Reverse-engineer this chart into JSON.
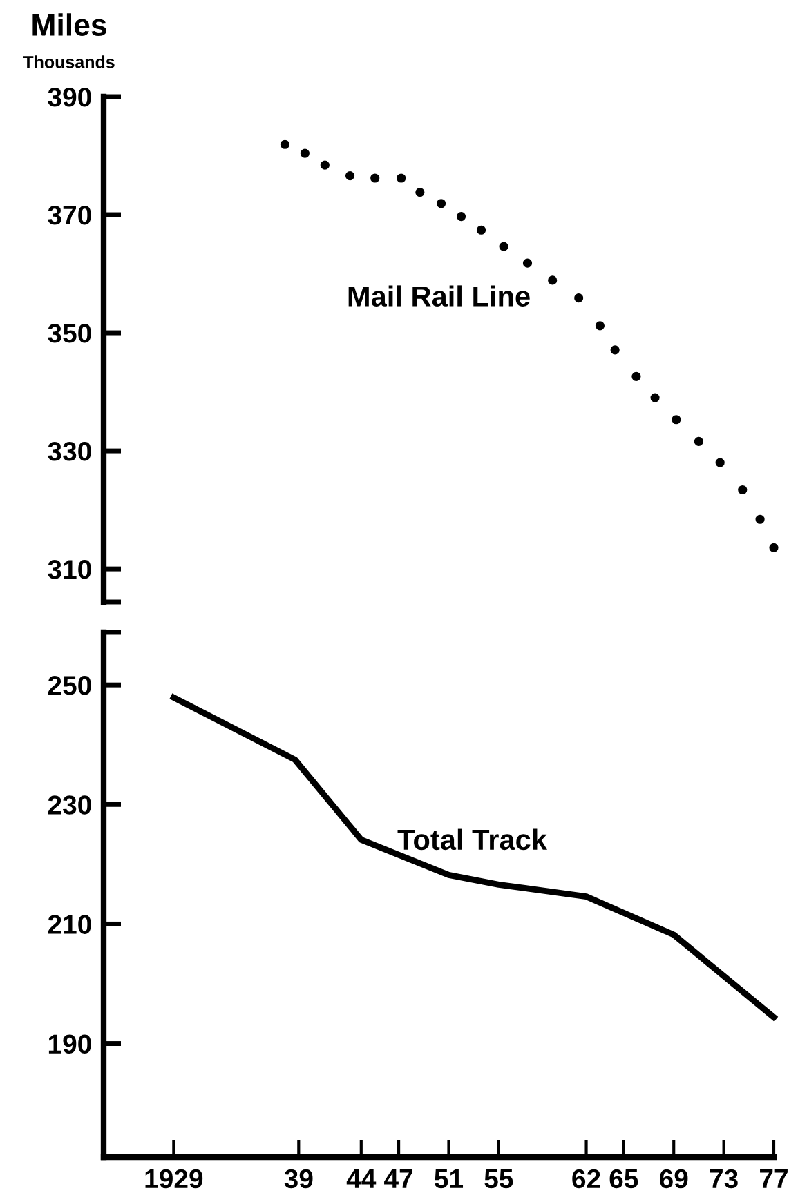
{
  "chart_data": [
    {
      "type": "scatter",
      "title": "Miles",
      "subtitle": "Thousands",
      "xlim": [
        1923.4,
        1977
      ],
      "ylim": [
        304.4,
        390
      ],
      "yticks": [
        {
          "value": 304.4,
          "label": null
        },
        310,
        330,
        350,
        370,
        390
      ],
      "tick_labels": "y",
      "grid": false,
      "legend": false,
      "marker": "circle",
      "series": [
        {
          "name": "Mail Rail Line",
          "color": "#000000",
          "x": [
            1937.9,
            1939.5,
            1941.1,
            1943.1,
            1945.1,
            1947.2,
            1948.7,
            1950.4,
            1952.0,
            1953.6,
            1955.4,
            1957.3,
            1959.3,
            1961.4,
            1963.1,
            1964.3,
            1966.0,
            1967.5,
            1969.2,
            1971.0,
            1972.7,
            1974.5,
            1975.9,
            1977.0
          ],
          "values": [
            381.9,
            380.4,
            378.4,
            376.6,
            376.2,
            376.2,
            373.8,
            371.9,
            369.7,
            367.4,
            364.6,
            361.8,
            358.9,
            355.9,
            351.2,
            347.1,
            342.6,
            339.0,
            335.3,
            331.6,
            328.0,
            323.4,
            318.4,
            313.6
          ]
        }
      ]
    },
    {
      "type": "line",
      "xlim": [
        1923.4,
        1977
      ],
      "ylim": [
        171,
        258.8
      ],
      "xticks": [
        1929,
        {
          "value": 1939,
          "label": "39"
        },
        {
          "value": 1944,
          "label": "44"
        },
        {
          "value": 1947,
          "label": "47"
        },
        {
          "value": 1951,
          "label": "51"
        },
        {
          "value": 1955,
          "label": "55"
        },
        {
          "value": 1962,
          "label": "62"
        },
        {
          "value": 1965,
          "label": "65"
        },
        {
          "value": 1969,
          "label": "69"
        },
        {
          "value": 1973,
          "label": "73"
        },
        {
          "value": 1977,
          "label": "77"
        }
      ],
      "yticks": [
        190,
        210,
        230,
        250,
        {
          "value": 258.8,
          "label": null
        }
      ],
      "grid": false,
      "legend": false,
      "marker": "none",
      "line_style": "solid",
      "series": [
        {
          "name": "Total Track",
          "color": "#000000",
          "x": [
            1929,
            1938.7,
            1944,
            1951,
            1955,
            1962,
            1969,
            1977
          ],
          "values": [
            247.9,
            237.5,
            224.1,
            218.2,
            216.6,
            214.6,
            208.2,
            194.4
          ]
        }
      ]
    }
  ]
}
